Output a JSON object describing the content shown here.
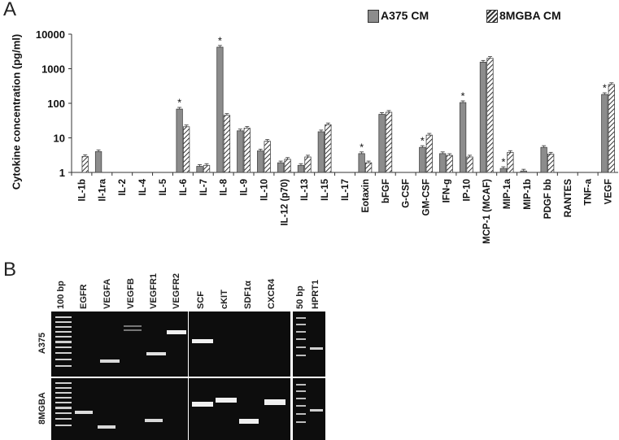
{
  "panel_a": {
    "letter": "A",
    "legend": [
      {
        "label": "A375 CM",
        "pattern": "solid",
        "color": "#8c8c8c"
      },
      {
        "label": "8MGBA CM",
        "pattern": "hatched",
        "color": "#ffffff"
      }
    ]
  },
  "chart_data": {
    "type": "bar",
    "title": "",
    "xlabel": "",
    "ylabel": "Cytokine concentration (pg/ml)",
    "yscale": "log",
    "ylim": [
      1,
      10000
    ],
    "yticks": [
      "1",
      "10",
      "100",
      "1000",
      "10000"
    ],
    "categories": [
      "IL-1b",
      "Il-1ra",
      "IL-2",
      "IL-4",
      "IL-5",
      "IL-6",
      "IL-7",
      "IL-8",
      "IL-9",
      "IL-10",
      "IL-12 (p70)",
      "IL-13",
      "IL-15",
      "IL-17",
      "Eotaxin",
      "bFGF",
      "G-CSF",
      "GM-CSF",
      "IFN-g",
      "IP-10",
      "MCP-1 (MCAF)",
      "MIP-1a",
      "MIP-1b",
      "PDGF bb",
      "RANTES",
      "TNF-a",
      "VEGF"
    ],
    "series": [
      {
        "name": "A375 CM",
        "values": [
          null,
          4,
          null,
          null,
          null,
          68,
          1.5,
          4200,
          16,
          4.2,
          1.9,
          1.6,
          15,
          null,
          3.5,
          48,
          null,
          5.3,
          3.5,
          105,
          1550,
          1.3,
          1.1,
          5.3,
          null,
          null,
          180
        ]
      },
      {
        "name": "8MGBA CM",
        "values": [
          2.9,
          null,
          null,
          null,
          null,
          21,
          1.6,
          45,
          19,
          8,
          2.4,
          2.8,
          24,
          null,
          1.9,
          55,
          null,
          12,
          3.1,
          2.8,
          2000,
          3.8,
          null,
          3.4,
          null,
          null,
          350
        ]
      }
    ],
    "significance": [
      "",
      "",
      "",
      "",
      "",
      "*",
      "",
      "*",
      "",
      "",
      "",
      "",
      "",
      "",
      "*",
      "",
      "",
      "*",
      "",
      "*",
      "",
      "*",
      "",
      "",
      "",
      "",
      "*"
    ]
  },
  "panel_b": {
    "letter": "B",
    "lane_labels_left": [
      "100 bp",
      "EGFR",
      "VEGFA",
      "VEGFB",
      "VEGFR1",
      "VEGFR2"
    ],
    "lane_labels_mid": [
      "SCF",
      "cKIT",
      "SDF1α",
      "CXCR4"
    ],
    "lane_labels_right": [
      "50 bp",
      "HPRT1"
    ],
    "row_labels": [
      "A375",
      "8MGBA"
    ]
  }
}
